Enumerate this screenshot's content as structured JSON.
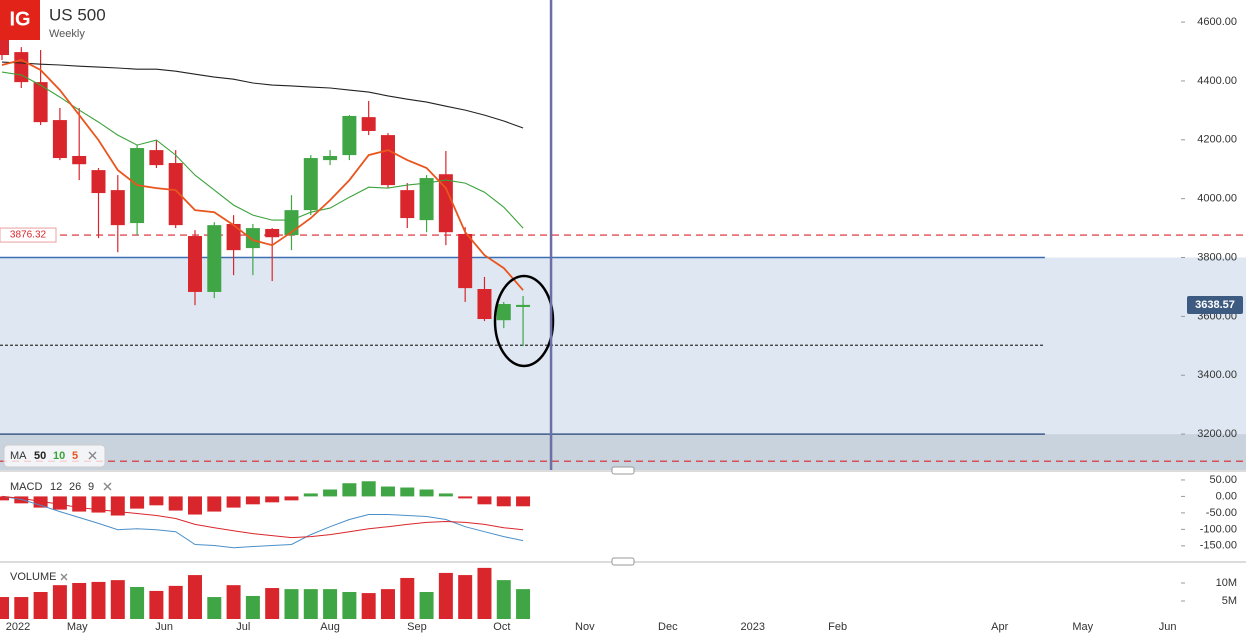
{
  "header": {
    "logo": "IG",
    "title": "US 500",
    "subtitle": "Weekly"
  },
  "chart_data": [
    {
      "type": "candlestick",
      "name": "MA",
      "x": [
        0,
        1,
        2,
        3,
        4,
        5,
        6,
        7,
        8,
        9,
        10,
        11,
        12,
        13,
        14,
        15,
        16,
        17,
        18,
        19,
        20,
        21,
        22,
        23,
        24,
        25,
        26,
        27
      ],
      "open": [
        4549,
        4498,
        4396,
        4267,
        4145,
        4097,
        4029,
        3917,
        4165,
        4121,
        3873,
        3683,
        3914,
        3832,
        3897,
        3876,
        3961,
        4131,
        4148,
        4277,
        4216,
        4029,
        3927,
        4083,
        3880,
        3693,
        3587,
        3632
      ],
      "high": [
        4573,
        4515,
        4505,
        4308,
        4308,
        4104,
        4080,
        4182,
        4199,
        4165,
        3893,
        3920,
        3944,
        3914,
        3900,
        4012,
        4148,
        4165,
        4284,
        4332,
        4223,
        4053,
        4080,
        4162,
        3903,
        3734,
        3649,
        3669
      ],
      "low": [
        4471,
        4376,
        4250,
        4131,
        4063,
        3866,
        3818,
        3876,
        4104,
        3900,
        3638,
        3662,
        3740,
        3740,
        3720,
        3825,
        3944,
        4114,
        4131,
        4216,
        4036,
        3900,
        3886,
        3842,
        3649,
        3584,
        3560,
        3499
      ],
      "close": [
        4488,
        4396,
        4260,
        4138,
        4117,
        4019,
        3910,
        4172,
        4114,
        3910,
        3683,
        3910,
        3825,
        3900,
        3869,
        3961,
        4138,
        4145,
        4281,
        4230,
        4046,
        3934,
        4070,
        3886,
        3696,
        3591,
        3642,
        3639
      ],
      "up_color": "#40a645",
      "down_color": "#d9262c",
      "series": [
        {
          "name": "50",
          "color": "#222222",
          "values": [
            4464,
            4461,
            4457,
            4454,
            4450,
            4447,
            4444,
            4440,
            4440,
            4433,
            4423,
            4413,
            4406,
            4393,
            4386,
            4383,
            4379,
            4376,
            4369,
            4362,
            4349,
            4338,
            4328,
            4314,
            4301,
            4284,
            4264,
            4240
          ]
        },
        {
          "name": "10",
          "color": "#3ca33c",
          "values": [
            4430,
            4420,
            4386,
            4345,
            4301,
            4260,
            4216,
            4182,
            4199,
            4148,
            4080,
            4029,
            3978,
            3944,
            3927,
            3927,
            3954,
            3968,
            4005,
            4039,
            4036,
            4046,
            4053,
            4063,
            4053,
            4022,
            3971,
            3900
          ]
        },
        {
          "name": "5",
          "color": "#e8561e",
          "values": [
            4454,
            4471,
            4437,
            4369,
            4284,
            4199,
            4097,
            4046,
            4036,
            4029,
            3961,
            3954,
            3910,
            3859,
            3842,
            3886,
            3934,
            3995,
            4063,
            4148,
            4165,
            4131,
            4104,
            4036,
            3886,
            3808,
            3764,
            3689
          ]
        }
      ],
      "ylim": [
        3078,
        4675
      ],
      "yticks": [
        {
          "value": 4600,
          "label": "4600.00"
        },
        {
          "value": 4400,
          "label": "4400.00"
        },
        {
          "value": 4200,
          "label": "4200.00"
        },
        {
          "value": 4000,
          "label": "4000.00"
        },
        {
          "value": 3800,
          "label": "3800.00"
        },
        {
          "value": 3600,
          "label": "3600.00"
        },
        {
          "value": 3400,
          "label": "3400.00"
        },
        {
          "value": 3200,
          "label": "3200.00"
        }
      ],
      "xlim": [
        -0.1036,
        61.04
      ],
      "xticks": [
        {
          "value": 0.83,
          "label": "2022"
        },
        {
          "value": 3.9,
          "label": "May"
        },
        {
          "value": 8.4,
          "label": "Jun"
        },
        {
          "value": 12.5,
          "label": "Jul"
        },
        {
          "value": 17.0,
          "label": "Aug"
        },
        {
          "value": 21.5,
          "label": "Sep"
        },
        {
          "value": 25.9,
          "label": "Oct"
        },
        {
          "value": 30.2,
          "label": "Nov"
        },
        {
          "value": 34.5,
          "label": "Dec"
        },
        {
          "value": 38.9,
          "label": "2023"
        },
        {
          "value": 43.3,
          "label": "Feb"
        },
        {
          "value": 51.7,
          "label": "Apr"
        },
        {
          "value": 56.0,
          "label": "May"
        },
        {
          "value": 60.4,
          "label": "Jun"
        }
      ],
      "zones": [
        {
          "from": 3200,
          "to": 3800,
          "color": "#dfe8f2"
        },
        {
          "to": 3200,
          "color": "#c9d3de"
        }
      ],
      "hlines": [
        {
          "value": 3876.32,
          "color": "#d9262c",
          "style": "dashed",
          "labeled": true
        },
        {
          "value": 3108,
          "color": "#d9262c",
          "style": "dashed"
        },
        {
          "value": 3800,
          "color": "#3d6fb5",
          "style": "solid",
          "x_end": 54.04
        },
        {
          "value": 3200,
          "color": "#3d5a8a",
          "style": "solid",
          "x_end": 54.04
        },
        {
          "value": 3502,
          "color": "#333333",
          "style": "dotted",
          "x_end": 54.04
        }
      ],
      "vline": 28.45,
      "last_price": 3638.57
    },
    {
      "type": "macd",
      "name": "MACD",
      "parameters": [
        12,
        26,
        9
      ],
      "histogram": [
        -12,
        -21,
        -34,
        -40,
        -46,
        -49,
        -58,
        -37,
        -27,
        -43,
        -55,
        -46,
        -34,
        -24,
        -18,
        -12,
        9,
        21,
        40,
        46,
        30,
        27,
        21,
        9,
        -6,
        -24,
        -30,
        -30
      ],
      "up_color": "#40a645",
      "down_color": "#d9262c",
      "series": [
        {
          "color": "#4a8fc9",
          "values": [
            0,
            -9,
            -27,
            -46,
            -64,
            -82,
            -101,
            -98,
            -101,
            -107,
            -146,
            -149,
            -156,
            -152,
            -149,
            -146,
            -116,
            -92,
            -70,
            -55,
            -55,
            -58,
            -61,
            -70,
            -92,
            -107,
            -122,
            -134
          ]
        },
        {
          "color": "#d9262c",
          "values": [
            0,
            -6,
            -15,
            -24,
            -34,
            -40,
            -46,
            -52,
            -58,
            -67,
            -85,
            -95,
            -104,
            -113,
            -119,
            -125,
            -122,
            -116,
            -107,
            -98,
            -92,
            -85,
            -79,
            -76,
            -79,
            -85,
            -95,
            -101
          ]
        }
      ],
      "ylim": [
        -193,
        65
      ],
      "yticks": [
        {
          "value": 50,
          "label": "50.00"
        },
        {
          "value": 0,
          "label": "0.00"
        },
        {
          "value": -50,
          "label": "-50.00"
        },
        {
          "value": -100,
          "label": "-100.00"
        },
        {
          "value": -150,
          "label": "-150.00"
        }
      ]
    },
    {
      "type": "volume",
      "name": "VOLUME",
      "values": [
        6100000,
        6100000,
        7500000,
        9400000,
        10000000,
        10300000,
        10800000,
        8900000,
        7800000,
        9200000,
        12200000,
        6100000,
        9400000,
        6400000,
        8600000,
        8300000,
        8300000,
        8300000,
        7500000,
        7200000,
        8300000,
        11400000,
        7500000,
        12800000,
        12200000,
        14200000,
        10800000,
        8300000
      ],
      "ylim": [
        0,
        15000000
      ],
      "yticks": [
        {
          "value": 10000000,
          "label": "10M"
        },
        {
          "value": 5000000,
          "label": "5M"
        }
      ]
    }
  ]
}
